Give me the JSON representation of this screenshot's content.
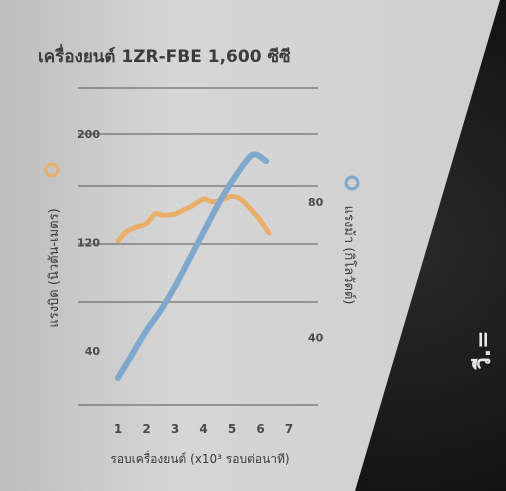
{
  "side_text": "วี.=",
  "chart_data": {
    "type": "line",
    "title": "เครื่องยนต์ 1ZR-FBE 1,600 ซีซี",
    "xlabel": "รอบเครื่องยนต์ (x10³ รอบต่อนาที)",
    "x_ticks": [
      "1",
      "2",
      "3",
      "4",
      "5",
      "6",
      "7"
    ],
    "xlim": [
      1,
      7
    ],
    "y_left": {
      "label": "แรงบิด (นิวตัน-เมตร)",
      "ticks": [
        "40",
        "120",
        "200"
      ],
      "ylim": [
        40,
        200
      ]
    },
    "y_right": {
      "label": "แรงม้า (กิโลวัตต์)",
      "ticks": [
        "40",
        "80"
      ],
      "ylim": [
        20,
        100
      ]
    },
    "grid": "horizontal",
    "series": [
      {
        "axis": "left",
        "color": "#E8AF6B",
        "x": [
          1,
          1.3,
          1.6,
          2,
          2.3,
          2.6,
          3,
          3.3,
          3.6,
          4,
          4.3,
          4.6,
          5,
          5.3,
          5.6,
          6,
          6.3
        ],
        "values": [
          121,
          128,
          131,
          134,
          141,
          140,
          141,
          144,
          147,
          152,
          150,
          151,
          154,
          152,
          146,
          136,
          127
        ]
      },
      {
        "axis": "right",
        "color": "#7FA8CC",
        "x": [
          1,
          1.5,
          2,
          2.5,
          3,
          3.5,
          4,
          4.5,
          5,
          5.5,
          5.8,
          6.2
        ],
        "values": [
          28,
          35,
          42,
          48,
          55,
          63,
          71,
          79,
          86,
          92,
          94,
          92
        ]
      }
    ],
    "colors": {
      "panel": "#CFCFCF",
      "background": "#1A1A1A",
      "grid": "#6E6E6E"
    }
  }
}
